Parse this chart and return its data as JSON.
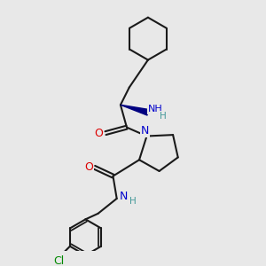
{
  "background_color": "#e8e8e8",
  "line_color": "#1a1a1a",
  "bond_width": 1.5,
  "O_color": "#dd0000",
  "N_color": "#0000cc",
  "Cl_color": "#008800",
  "H_color": "#449999",
  "figsize": [
    3.0,
    3.0
  ],
  "dpi": 100,
  "xlim": [
    0,
    10
  ],
  "ylim": [
    0,
    10
  ]
}
